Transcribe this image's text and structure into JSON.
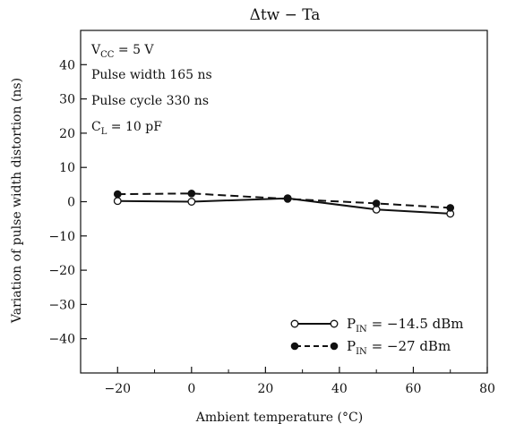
{
  "chart_data": {
    "type": "line",
    "title": "Δtw − Ta",
    "xlabel": "Ambient temperature (°C)",
    "ylabel": "Variation of pulse width distortion (ns)",
    "xlim": [
      -30,
      80
    ],
    "ylim": [
      -50,
      50
    ],
    "xticks": [
      -20,
      0,
      20,
      40,
      60,
      80
    ],
    "yticks": [
      40,
      30,
      20,
      10,
      0,
      -10,
      -20,
      -30,
      -40
    ],
    "xtick_labels": [
      "−20",
      "0",
      "20",
      "40",
      "60",
      "80"
    ],
    "ytick_labels": [
      "40",
      "30",
      "20",
      "10",
      "0",
      "−10",
      "−20",
      "−30",
      "−40"
    ],
    "grid": false,
    "legend_position": "bottom-right",
    "annotations": {
      "vcc_main": "V",
      "vcc_sub": "CC",
      "vcc_value": " = 5 V",
      "pulse_width": "Pulse width 165 ns",
      "pulse_cycle": "Pulse cycle 330 ns",
      "cl_main": "C",
      "cl_sub": "L",
      "cl_value": " = 10 pF"
    },
    "series": [
      {
        "name_main": "P",
        "name_sub": "IN",
        "name_value": " = −14.5 dBm",
        "line_style": "solid",
        "marker": "open-circle",
        "x": [
          -20,
          0,
          26,
          50,
          70
        ],
        "y": [
          0.2,
          0.0,
          1.0,
          -2.3,
          -3.5
        ]
      },
      {
        "name_main": "P",
        "name_sub": "IN",
        "name_value": " = −27 dBm",
        "line_style": "dashed",
        "marker": "filled-circle",
        "x": [
          -20,
          0,
          26,
          50,
          70
        ],
        "y": [
          2.2,
          2.4,
          0.8,
          -0.5,
          -1.8
        ]
      }
    ]
  }
}
